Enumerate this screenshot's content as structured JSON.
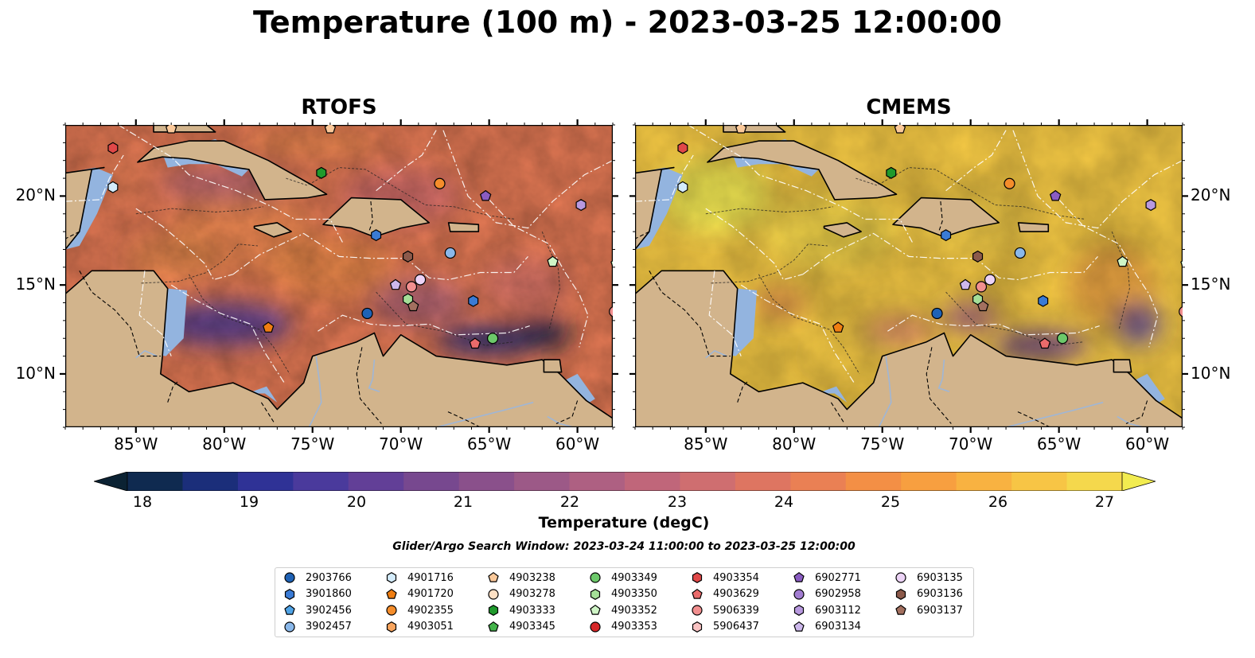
{
  "title": "Temperature (100 m) - 2023-03-25 12:00:00",
  "panels": [
    {
      "title": "RTOFS",
      "palette": "warm"
    },
    {
      "title": "CMEMS",
      "palette": "hot"
    }
  ],
  "lon_labels": [
    "85°W",
    "80°W",
    "75°W",
    "70°W",
    "65°W",
    "60°W"
  ],
  "lat_labels": [
    "20°N",
    "15°N",
    "10°N"
  ],
  "colorbar": {
    "ticks": [
      "18",
      "19",
      "20",
      "21",
      "22",
      "23",
      "24",
      "25",
      "26",
      "27"
    ],
    "label": "Temperature (degC)",
    "colors": [
      "#0b2233",
      "#0f2a50",
      "#1b2e7a",
      "#2f3296",
      "#4a3a9c",
      "#623f97",
      "#77488f",
      "#8a508b",
      "#9c5987",
      "#ae6082",
      "#c0667a",
      "#cf6e70",
      "#de7561",
      "#ea8054",
      "#f38f45",
      "#f79f40",
      "#f8b241",
      "#f7c545",
      "#f5d84c",
      "#f2ec50"
    ]
  },
  "search_window": "Glider/Argo Search Window: 2023-03-24 11:00:00 to 2023-03-25 12:00:00",
  "legend": [
    {
      "id": "2903766",
      "marker": "circle",
      "color": "#1f62b5"
    },
    {
      "id": "3901860",
      "marker": "hexagon",
      "color": "#3a7bd5"
    },
    {
      "id": "3902456",
      "marker": "pentagon",
      "color": "#4fa3e6"
    },
    {
      "id": "3902457",
      "marker": "circle",
      "color": "#8ab8ea"
    },
    {
      "id": "4901716",
      "marker": "hexagon",
      "color": "#d4ecfb"
    },
    {
      "id": "4901720",
      "marker": "pentagon",
      "color": "#f07e12"
    },
    {
      "id": "4902355",
      "marker": "circle",
      "color": "#f58d2b"
    },
    {
      "id": "4903051",
      "marker": "hexagon",
      "color": "#f9a55e"
    },
    {
      "id": "4903238",
      "marker": "pentagon",
      "color": "#fbc99a"
    },
    {
      "id": "4903278",
      "marker": "circle",
      "color": "#fde0c4"
    },
    {
      "id": "4903333",
      "marker": "hexagon",
      "color": "#1f9a2c"
    },
    {
      "id": "4903345",
      "marker": "pentagon",
      "color": "#43b34a"
    },
    {
      "id": "4903349",
      "marker": "circle",
      "color": "#6cc96a"
    },
    {
      "id": "4903350",
      "marker": "hexagon",
      "color": "#a5df98"
    },
    {
      "id": "4903352",
      "marker": "pentagon",
      "color": "#cff5c6"
    },
    {
      "id": "4903353",
      "marker": "circle",
      "color": "#d62728"
    },
    {
      "id": "4903354",
      "marker": "hexagon",
      "color": "#e04848"
    },
    {
      "id": "4903629",
      "marker": "pentagon",
      "color": "#ea6b6b"
    },
    {
      "id": "5906339",
      "marker": "circle",
      "color": "#f28f8f"
    },
    {
      "id": "5906437",
      "marker": "hexagon",
      "color": "#f9c3c3"
    },
    {
      "id": "6902771",
      "marker": "pentagon",
      "color": "#8a5cc2"
    },
    {
      "id": "6902958",
      "marker": "circle",
      "color": "#a27dd1"
    },
    {
      "id": "6903112",
      "marker": "hexagon",
      "color": "#b899df"
    },
    {
      "id": "6903134",
      "marker": "pentagon",
      "color": "#cdb8ec"
    },
    {
      "id": "6903135",
      "marker": "circle",
      "color": "#ecd3f6"
    },
    {
      "id": "6903136",
      "marker": "hexagon",
      "color": "#8c5a4b"
    },
    {
      "id": "6903137",
      "marker": "pentagon",
      "color": "#a3705f"
    }
  ],
  "floats": [
    {
      "id": "4903354",
      "lon": -86.3,
      "lat": 22.7
    },
    {
      "id": "4901716",
      "lon": -86.3,
      "lat": 20.5
    },
    {
      "id": "4903238",
      "lon": -83.0,
      "lat": 23.8
    },
    {
      "id": "4903238",
      "lon": -74.0,
      "lat": 23.8
    },
    {
      "id": "4903333",
      "lon": -74.5,
      "lat": 21.3
    },
    {
      "id": "4902355",
      "lon": -67.8,
      "lat": 20.7
    },
    {
      "id": "6902771",
      "lon": -65.2,
      "lat": 20.0
    },
    {
      "id": "6903112",
      "lon": -59.8,
      "lat": 19.5
    },
    {
      "id": "3901860",
      "lon": -71.4,
      "lat": 17.8
    },
    {
      "id": "6903136",
      "lon": -69.6,
      "lat": 16.6
    },
    {
      "id": "3902457",
      "lon": -67.2,
      "lat": 16.8
    },
    {
      "id": "4903352",
      "lon": -57.8,
      "lat": 16.2
    },
    {
      "id": "6903134",
      "lon": -70.3,
      "lat": 15.0
    },
    {
      "id": "5906339",
      "lon": -69.4,
      "lat": 14.9
    },
    {
      "id": "6903135",
      "lon": -68.9,
      "lat": 15.3
    },
    {
      "id": "3901860",
      "lon": -65.9,
      "lat": 14.1
    },
    {
      "id": "4903350",
      "lon": -69.6,
      "lat": 14.2
    },
    {
      "id": "6903137",
      "lon": -69.3,
      "lat": 13.8
    },
    {
      "id": "2903766",
      "lon": -71.9,
      "lat": 13.4
    },
    {
      "id": "4903352",
      "lon": -61.4,
      "lat": 16.3
    },
    {
      "id": "5906339",
      "lon": -57.9,
      "lat": 13.5
    },
    {
      "id": "4901720",
      "lon": -77.5,
      "lat": 12.6
    },
    {
      "id": "4903629",
      "lon": -65.8,
      "lat": 11.7
    },
    {
      "id": "4903349",
      "lon": -64.8,
      "lat": 12.0
    }
  ]
}
